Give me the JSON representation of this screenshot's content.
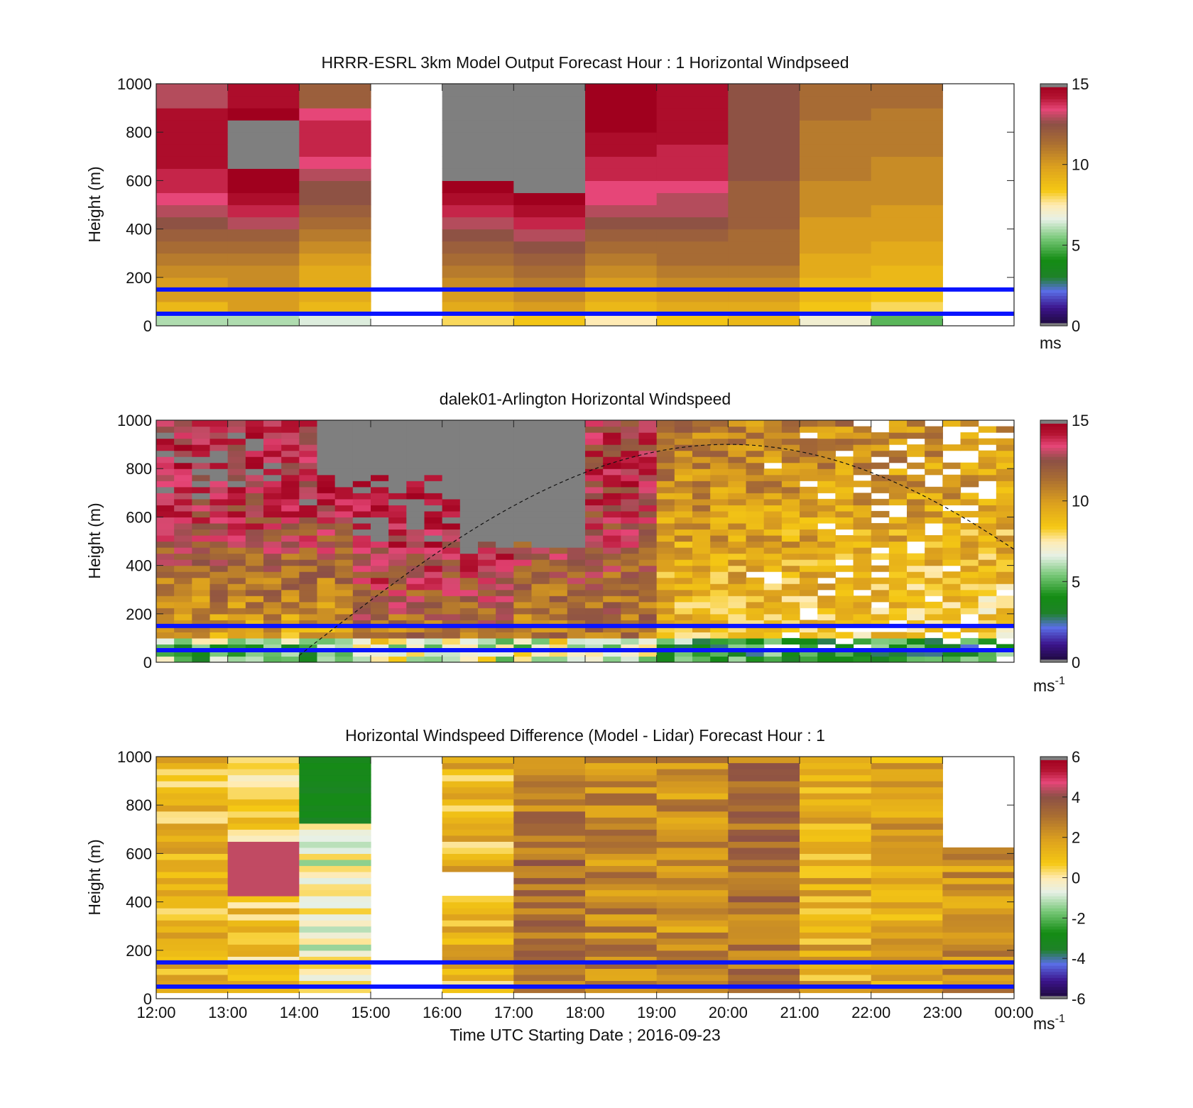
{
  "figure": {
    "xlabel": "Time UTC  Starting Date ; 2016-09-23",
    "x_ticks": [
      "12:00",
      "13:00",
      "14:00",
      "15:00",
      "16:00",
      "17:00",
      "18:00",
      "19:00",
      "20:00",
      "21:00",
      "22:00",
      "23:00",
      "00:00"
    ]
  },
  "chart_data": [
    {
      "type": "heatmap",
      "title": "HRRR-ESRL 3km Model Output   Forecast Hour : 1 Horizontal Windpseed",
      "ylabel": "Height (m)",
      "colorbar_unit": "ms",
      "colorbar_sup": "",
      "xlim": [
        "12:00",
        "00:00"
      ],
      "ylim": [
        0,
        1000
      ],
      "y_ticks": [
        "0",
        "200",
        "400",
        "600",
        "800",
        "1000"
      ],
      "colorbar": {
        "range": [
          0,
          15
        ],
        "ticks": [
          "0",
          "5",
          "10",
          "15"
        ]
      },
      "time_columns": [
        "12:00",
        "13:00",
        "14:00",
        "15:00",
        "16:00",
        "17:00",
        "18:00",
        "19:00",
        "20:00",
        "21:00",
        "22:00",
        "23:00"
      ],
      "height_bins_top_m": [
        50,
        100,
        150,
        200,
        250,
        300,
        350,
        400,
        450,
        500,
        550,
        600,
        650,
        700,
        750,
        800,
        850,
        900,
        950,
        1000
      ],
      "z": [
        [
          6,
          9,
          10,
          10,
          10.5,
          11,
          11.5,
          12,
          12.5,
          13,
          13.5,
          14,
          14,
          14.5,
          14.5,
          14.5,
          14.5,
          14.5,
          13,
          13
        ],
        [
          6,
          10,
          10,
          10.5,
          10.5,
          11,
          11.5,
          12,
          13,
          14,
          14.5,
          15,
          15,
          15.5,
          15.5,
          15.5,
          15.5,
          15,
          14.5,
          14.5
        ],
        [
          6.5,
          9,
          9.5,
          9.5,
          9.5,
          10,
          10.5,
          11,
          11.5,
          12,
          12.5,
          12.5,
          13,
          13.5,
          14,
          14,
          14,
          13.5,
          12,
          12
        ],
        [
          null,
          null,
          null,
          null,
          null,
          null,
          null,
          null,
          null,
          null,
          null,
          null,
          null,
          null,
          null,
          null,
          null,
          null,
          null,
          null
        ],
        [
          8,
          9.5,
          10,
          10.5,
          11,
          11.5,
          12,
          12.5,
          13,
          14,
          14.5,
          15,
          16,
          16,
          16,
          16,
          16,
          16,
          16,
          16
        ],
        [
          8.5,
          10,
          10.5,
          11,
          11.5,
          12,
          12.5,
          13,
          14,
          14.5,
          15,
          16,
          16,
          16,
          16,
          16,
          16,
          16,
          16,
          16
        ],
        [
          7.5,
          9,
          9.5,
          10,
          10.5,
          11,
          11.5,
          12,
          12.5,
          13,
          13.5,
          13.5,
          14,
          14,
          14.5,
          14.5,
          15,
          15,
          15,
          15
        ],
        [
          8.5,
          9.5,
          10,
          10.5,
          11,
          11.5,
          11.5,
          12,
          12.5,
          13,
          13,
          13.5,
          14,
          14,
          14,
          14.5,
          14.5,
          14.5,
          14.5,
          14.5
        ],
        [
          9,
          9.5,
          10,
          10.5,
          11,
          11.5,
          11.5,
          11.5,
          12,
          12,
          12,
          12,
          12.5,
          12.5,
          12.5,
          12.5,
          12.5,
          12.5,
          12.5,
          12.5
        ],
        [
          7,
          8.5,
          9,
          9,
          9.5,
          9.5,
          10,
          10,
          10,
          10.5,
          10.5,
          10.5,
          11,
          11,
          11,
          11,
          11,
          11.5,
          11.5,
          11.5
        ],
        [
          5,
          8,
          8.5,
          9,
          9,
          9.5,
          9.5,
          10,
          10,
          10,
          10.5,
          10.5,
          10.5,
          10.5,
          11,
          11,
          11,
          11,
          11.5,
          11.5
        ],
        [
          null,
          null,
          null,
          null,
          null,
          null,
          null,
          null,
          null,
          null,
          null,
          null,
          null,
          null,
          null,
          null,
          null,
          null,
          null,
          null
        ]
      ],
      "reference_lines_m": [
        50,
        150
      ]
    },
    {
      "type": "heatmap",
      "title": "dalek01-Arlington  Horizontal Windspeed",
      "ylabel": "Height (m)",
      "colorbar_unit": "ms",
      "colorbar_sup": "-1",
      "xlim": [
        "12:00",
        "00:00"
      ],
      "ylim": [
        0,
        1000
      ],
      "y_ticks": [
        "0",
        "200",
        "400",
        "600",
        "800",
        "1000"
      ],
      "colorbar": {
        "range": [
          0,
          15
        ],
        "ticks": [
          "0",
          "5",
          "10",
          "15"
        ]
      },
      "time_step_minutes": 15,
      "height_bin_m": 25,
      "saturated_above_15": "gray",
      "top_clipped_profiles_m": [
        950,
        950,
        950,
        950,
        950,
        950,
        950,
        950,
        950,
        950,
        950,
        950,
        950,
        950,
        950,
        950,
        950,
        950,
        950,
        950,
        950,
        950,
        950,
        950,
        950,
        950,
        950,
        950,
        950,
        950,
        950,
        950,
        950,
        950,
        950,
        950,
        950,
        950,
        950,
        950,
        950,
        950,
        950,
        950,
        950,
        950,
        950,
        950
      ],
      "reference_lines_m": [
        50,
        150
      ],
      "dashed_curve": {
        "peak_time": "20:00",
        "peak_m": 900,
        "start_time": "14:00",
        "end_value_m": 420
      }
    },
    {
      "type": "heatmap",
      "title": "Horizontal Windspeed Difference (Model - Lidar) Forecast Hour : 1",
      "ylabel": "Height (m)",
      "colorbar_unit": "ms",
      "colorbar_sup": "-1",
      "xlim": [
        "12:00",
        "00:00"
      ],
      "ylim": [
        0,
        1000
      ],
      "y_ticks": [
        "0",
        "200",
        "400",
        "600",
        "800",
        "1000"
      ],
      "colorbar": {
        "range": [
          -6,
          6
        ],
        "ticks": [
          "-6",
          "-4",
          "-2",
          "0",
          "2",
          "4",
          "6"
        ]
      },
      "time_columns": [
        "12:00",
        "13:00",
        "14:00",
        "15:00",
        "16:00",
        "17:00",
        "18:00",
        "19:00",
        "20:00",
        "21:00",
        "22:00",
        "23:00"
      ],
      "height_bin_m": 25,
      "reference_lines_m": [
        50,
        150
      ]
    }
  ]
}
